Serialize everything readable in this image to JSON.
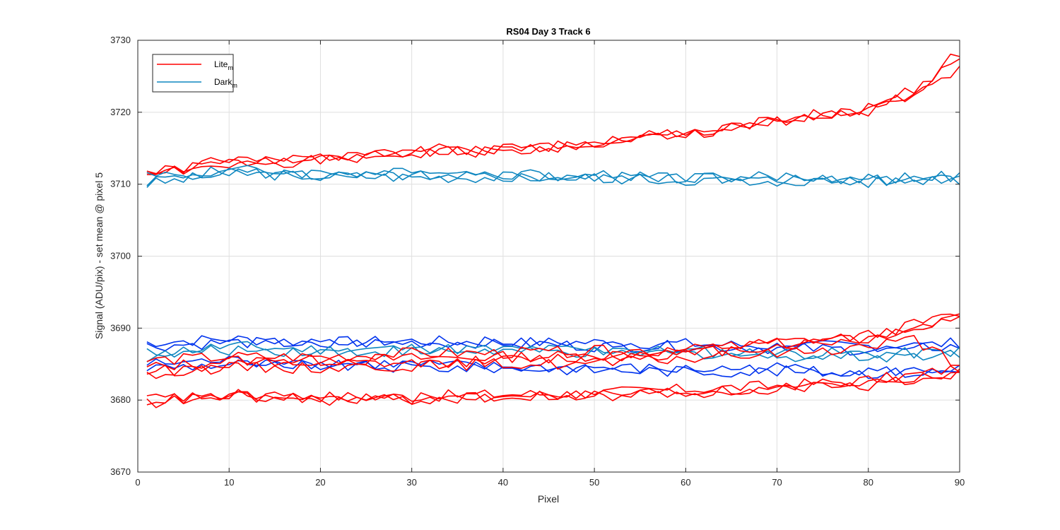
{
  "chart_data": {
    "type": "line",
    "title": "RS04 Day 3 Track 6",
    "xlabel": "Pixel",
    "ylabel": "Signal (ADU/pix) - set mean @ pixel 5",
    "xlim": [
      0,
      90
    ],
    "ylim": [
      3670,
      3730
    ],
    "x_ticks": [
      0,
      10,
      20,
      30,
      40,
      50,
      60,
      70,
      80,
      90
    ],
    "y_ticks": [
      3670,
      3680,
      3690,
      3700,
      3710,
      3720,
      3730
    ],
    "grid": true,
    "legend": {
      "placement": "top-left",
      "entries": [
        {
          "label": "Lite",
          "subscript": "m",
          "color": "#ff0000"
        },
        {
          "label": "Dark",
          "subscript": "m",
          "color": "#0f87c0"
        }
      ]
    },
    "colors": {
      "lite": "#ff0000",
      "dark": "#0f87c0",
      "dark_blue": "#0033ee"
    },
    "series_points": [
      1,
      10,
      20,
      30,
      40,
      50,
      60,
      70,
      80,
      85,
      90
    ],
    "series": [
      {
        "group": "lite",
        "color": "#ff0000",
        "values": [
          3711.0,
          3713.5,
          3713.5,
          3714.5,
          3714.5,
          3715.8,
          3717.2,
          3719.0,
          3720.5,
          3722.5,
          3728.5
        ]
      },
      {
        "group": "lite",
        "color": "#ff0000",
        "values": [
          3711.5,
          3713.0,
          3713.2,
          3714.2,
          3714.8,
          3715.5,
          3717.0,
          3718.5,
          3720.0,
          3722.0,
          3726.0
        ]
      },
      {
        "group": "lite",
        "color": "#ff0000",
        "values": [
          3712.0,
          3712.5,
          3713.8,
          3714.8,
          3715.0,
          3716.0,
          3716.8,
          3718.8,
          3720.8,
          3723.0,
          3727.5
        ]
      },
      {
        "group": "dark",
        "color": "#0f87c0",
        "values": [
          3710.0,
          3711.5,
          3711.2,
          3711.0,
          3711.0,
          3711.0,
          3710.8,
          3710.5,
          3710.5,
          3710.8,
          3710.5
        ]
      },
      {
        "group": "dark",
        "color": "#0f87c0",
        "values": [
          3710.5,
          3712.0,
          3711.5,
          3711.5,
          3711.5,
          3711.2,
          3711.0,
          3711.0,
          3710.8,
          3711.0,
          3711.0
        ]
      },
      {
        "group": "dark",
        "color": "#0f87c0",
        "values": [
          3711.0,
          3711.8,
          3711.0,
          3711.2,
          3711.0,
          3710.8,
          3710.5,
          3710.5,
          3710.2,
          3710.5,
          3711.0
        ]
      },
      {
        "group": "dark",
        "color": "#0033ee",
        "values": [
          3687.5,
          3688.0,
          3687.8,
          3688.0,
          3688.0,
          3687.5,
          3687.5,
          3687.2,
          3687.0,
          3687.2,
          3687.5
        ]
      },
      {
        "group": "dark",
        "color": "#0033ee",
        "values": [
          3688.0,
          3688.5,
          3688.0,
          3688.2,
          3688.0,
          3688.0,
          3687.8,
          3687.5,
          3687.5,
          3687.5,
          3688.0
        ]
      },
      {
        "group": "dark",
        "color": "#0033ee",
        "values": [
          3685.0,
          3685.5,
          3685.0,
          3685.0,
          3684.5,
          3684.5,
          3684.2,
          3684.5,
          3684.0,
          3684.0,
          3684.5
        ]
      },
      {
        "group": "dark",
        "color": "#0033ee",
        "values": [
          3684.5,
          3685.0,
          3684.8,
          3684.5,
          3684.5,
          3684.2,
          3684.0,
          3684.0,
          3683.8,
          3683.8,
          3684.0
        ]
      },
      {
        "group": "dark",
        "color": "#0f87c0",
        "values": [
          3686.0,
          3687.0,
          3686.8,
          3686.8,
          3686.8,
          3686.5,
          3686.5,
          3686.2,
          3686.0,
          3686.2,
          3686.5
        ]
      },
      {
        "group": "dark",
        "color": "#0f87c0",
        "values": [
          3686.5,
          3687.5,
          3687.0,
          3687.2,
          3687.0,
          3687.0,
          3686.8,
          3686.5,
          3686.5,
          3686.5,
          3686.8
        ]
      },
      {
        "group": "lite",
        "color": "#ff0000",
        "values": [
          3683.5,
          3685.0,
          3685.0,
          3685.0,
          3685.5,
          3686.0,
          3686.5,
          3687.5,
          3688.5,
          3690.0,
          3691.5
        ]
      },
      {
        "group": "lite",
        "color": "#ff0000",
        "values": [
          3684.5,
          3685.5,
          3685.5,
          3685.8,
          3686.0,
          3686.2,
          3687.0,
          3688.0,
          3689.0,
          3690.5,
          3692.0
        ]
      },
      {
        "group": "lite",
        "color": "#ff0000",
        "values": [
          3685.5,
          3686.0,
          3686.0,
          3686.5,
          3686.5,
          3686.8,
          3687.0,
          3687.8,
          3688.5,
          3690.0,
          3691.2
        ]
      },
      {
        "group": "lite",
        "color": "#ff0000",
        "values": [
          3684.0,
          3684.5,
          3684.5,
          3684.8,
          3685.0,
          3685.0,
          3685.8,
          3686.5,
          3687.5,
          3688.5,
          3684.5
        ]
      },
      {
        "group": "lite",
        "color": "#ff0000",
        "values": [
          3680.0,
          3680.5,
          3680.2,
          3680.2,
          3680.5,
          3680.8,
          3681.2,
          3681.5,
          3682.5,
          3683.0,
          3684.0
        ]
      },
      {
        "group": "lite",
        "color": "#ff0000",
        "values": [
          3679.5,
          3680.8,
          3680.5,
          3680.5,
          3680.8,
          3681.0,
          3681.5,
          3682.0,
          3682.8,
          3683.5,
          3684.5
        ]
      },
      {
        "group": "lite",
        "color": "#ff0000",
        "values": [
          3680.2,
          3680.5,
          3680.0,
          3680.0,
          3680.5,
          3680.5,
          3681.0,
          3681.5,
          3682.0,
          3683.0,
          3683.8
        ]
      }
    ]
  }
}
